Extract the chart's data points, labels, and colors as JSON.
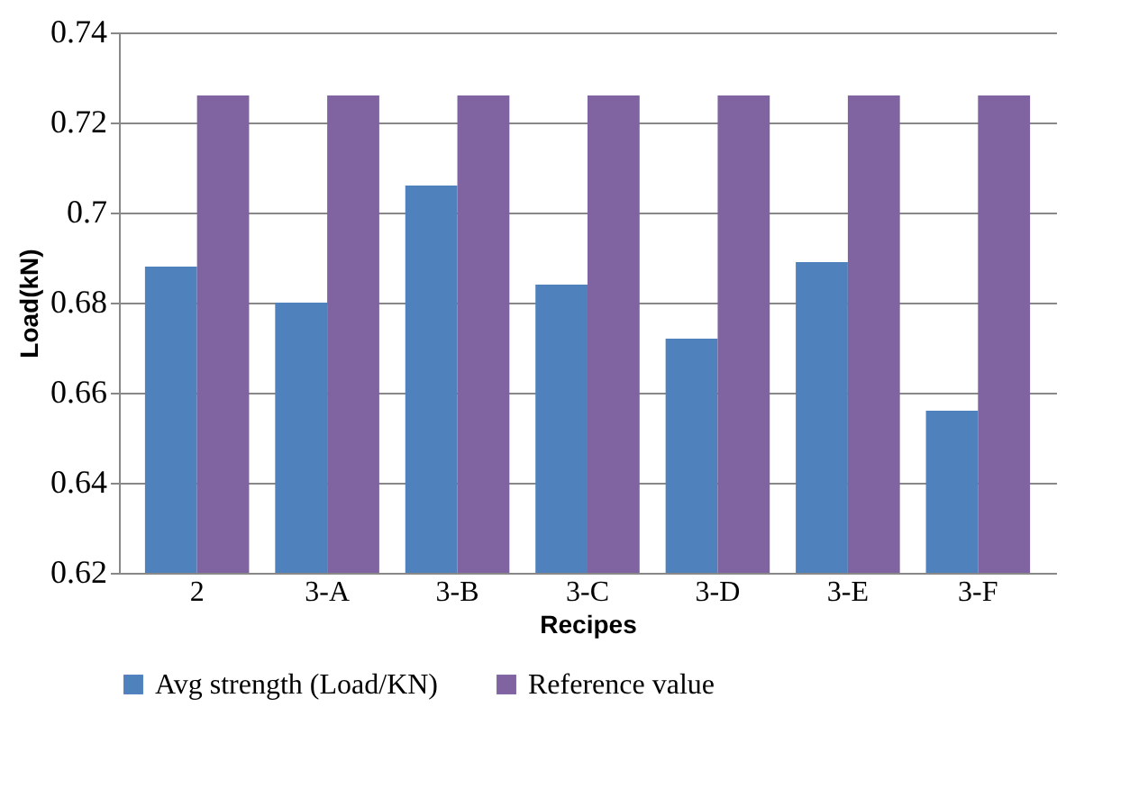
{
  "chart_data": {
    "type": "bar",
    "xlabel": "Recipes",
    "ylabel": "Load(kN)",
    "categories": [
      "2",
      "3-A",
      "3-B",
      "3-C",
      "3-D",
      "3-E",
      "3-F"
    ],
    "series": [
      {
        "name": "Avg strength (Load/KN)",
        "color": "#4f81bd",
        "values": [
          0.688,
          0.68,
          0.706,
          0.684,
          0.672,
          0.689,
          0.656
        ]
      },
      {
        "name": "Reference value",
        "color": "#8064a2",
        "values": [
          0.726,
          0.726,
          0.726,
          0.726,
          0.726,
          0.726,
          0.726
        ]
      }
    ],
    "ylim": [
      0.62,
      0.74
    ],
    "yticks": [
      0.62,
      0.64,
      0.66,
      0.68,
      {
        "value": 0.7,
        "label": "0.7"
      },
      0.72,
      0.74
    ],
    "grid": "y",
    "legend": "bottom"
  }
}
